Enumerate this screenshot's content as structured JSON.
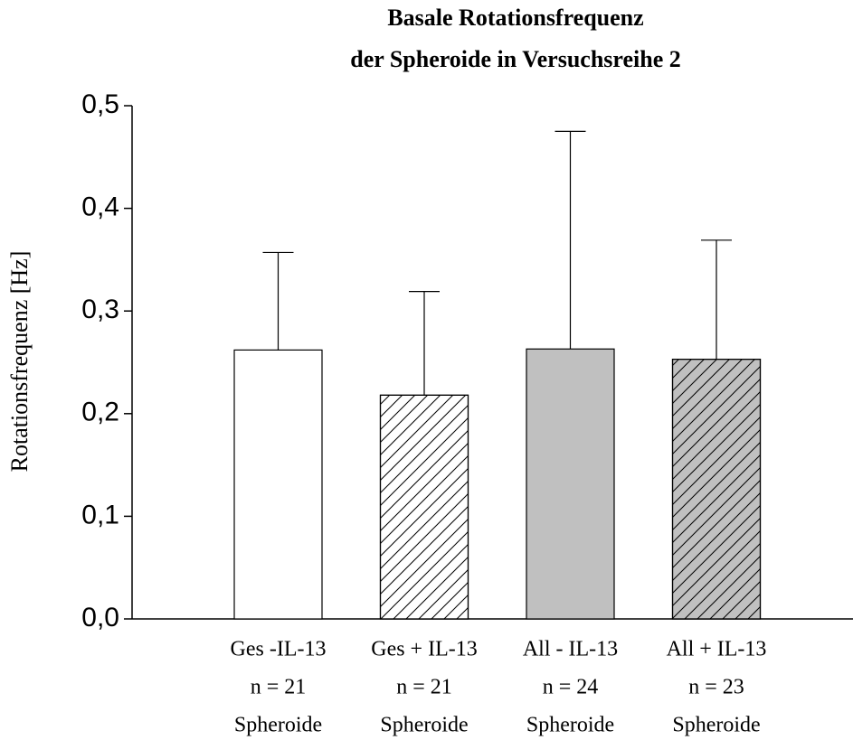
{
  "chart_data": {
    "type": "bar",
    "title": [
      "Basale Rotationsfrequenz",
      "der Spheroide in  Versuchsreihe 2"
    ],
    "y_label": "Rotationsfrequenz [Hz]",
    "categories": [
      [
        "Ges -IL-13",
        "n = 21",
        "Spheroide"
      ],
      [
        "Ges + IL-13",
        "n = 21",
        "Spheroide"
      ],
      [
        "All - IL-13",
        "n = 24",
        "Spheroide"
      ],
      [
        "All + IL-13",
        "n = 23",
        "Spheroide"
      ]
    ],
    "values": [
      0.262,
      0.218,
      0.263,
      0.253
    ],
    "errors": [
      0.095,
      0.101,
      0.212,
      0.116
    ],
    "colors": [
      "#ffffff",
      "#ffffff",
      "#c0c0c0",
      "#c0c0c0"
    ],
    "hatch": [
      false,
      true,
      false,
      true
    ],
    "ylim": [
      0,
      0.5
    ],
    "yticks": [
      {
        "value": 0,
        "label": "0,0"
      },
      {
        "value": 0.1,
        "label": "0,1"
      },
      {
        "value": 0.2,
        "label": "0,2"
      },
      {
        "value": 0.3,
        "label": "0,3"
      },
      {
        "value": 0.4,
        "label": "0,4"
      },
      {
        "value": 0.5,
        "label": "0,5"
      }
    ],
    "grid": false
  }
}
